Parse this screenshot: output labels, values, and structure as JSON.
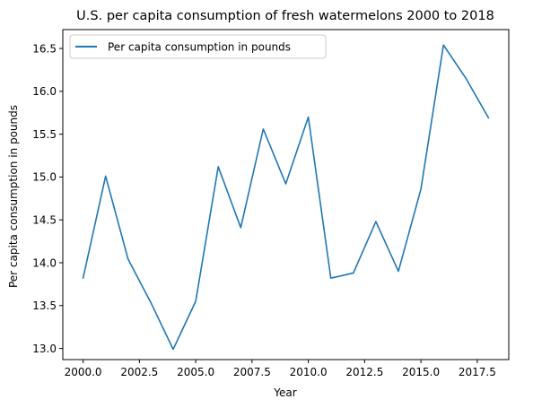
{
  "chart_data": {
    "type": "line",
    "title": "U.S. per capita consumption of fresh watermelons 2000 to 2018",
    "xlabel": "Year",
    "ylabel": "Per capita consumption in pounds",
    "xlim": [
      1999.1,
      2018.9
    ],
    "ylim": [
      12.87,
      16.72
    ],
    "xticks": [
      2000.0,
      2002.5,
      2005.0,
      2007.5,
      2010.0,
      2012.5,
      2015.0,
      2017.5
    ],
    "xtick_labels": [
      "2000.0",
      "2002.5",
      "2005.0",
      "2007.5",
      "2010.0",
      "2012.5",
      "2015.0",
      "2017.5"
    ],
    "yticks": [
      13.0,
      13.5,
      14.0,
      14.5,
      15.0,
      15.5,
      16.0,
      16.5
    ],
    "ytick_labels": [
      "13.0",
      "13.5",
      "14.0",
      "14.5",
      "15.0",
      "15.5",
      "16.0",
      "16.5"
    ],
    "grid": false,
    "legend_position": "upper-left",
    "x": [
      2000,
      2001,
      2002,
      2003,
      2004,
      2005,
      2006,
      2007,
      2008,
      2009,
      2010,
      2011,
      2012,
      2013,
      2014,
      2015,
      2016,
      2017,
      2018
    ],
    "series": [
      {
        "name": "Per capita consumption in pounds",
        "color": "#1f77b4",
        "values": [
          13.82,
          15.01,
          14.04,
          13.54,
          12.99,
          13.55,
          15.12,
          14.41,
          15.56,
          14.92,
          15.7,
          13.82,
          13.88,
          14.48,
          13.9,
          14.86,
          16.54,
          16.15,
          15.69
        ]
      }
    ]
  }
}
